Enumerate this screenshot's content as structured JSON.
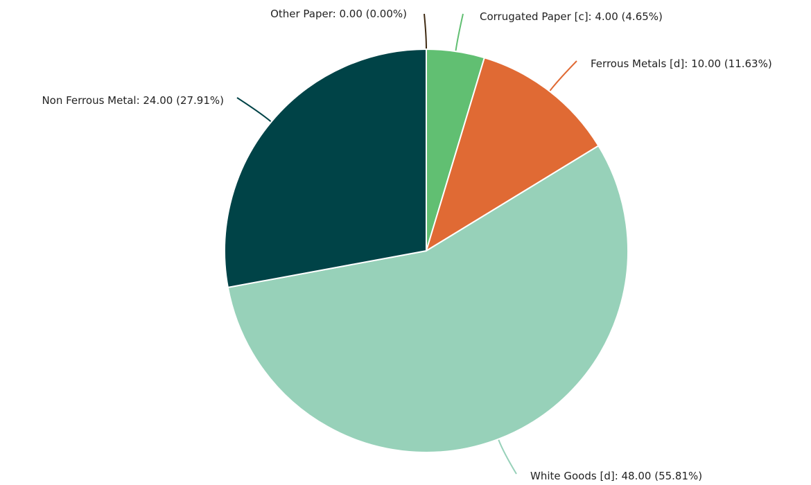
{
  "chart_data": {
    "type": "pie",
    "slices": [
      {
        "name": "Other Paper",
        "value": 0.0,
        "percent": 0.0,
        "label": "Other Paper: 0.00 (0.00%)",
        "color": "#3f2a12"
      },
      {
        "name": "Corrugated Paper [c]",
        "value": 4.0,
        "percent": 4.65,
        "label": "Corrugated Paper [c]: 4.00 (4.65%)",
        "color": "#61bf72"
      },
      {
        "name": "Ferrous Metals [d]",
        "value": 10.0,
        "percent": 11.63,
        "label": "Ferrous Metals [d]: 10.00 (11.63%)",
        "color": "#e06a34"
      },
      {
        "name": "White Goods [d]",
        "value": 48.0,
        "percent": 55.81,
        "label": "White Goods [d]: 48.00 (55.81%)",
        "color": "#97d1b9"
      },
      {
        "name": "Non Ferrous Metal",
        "value": 24.0,
        "percent": 27.91,
        "label": "Non Ferrous Metal: 24.00 (27.91%)",
        "color": "#004347"
      }
    ]
  }
}
